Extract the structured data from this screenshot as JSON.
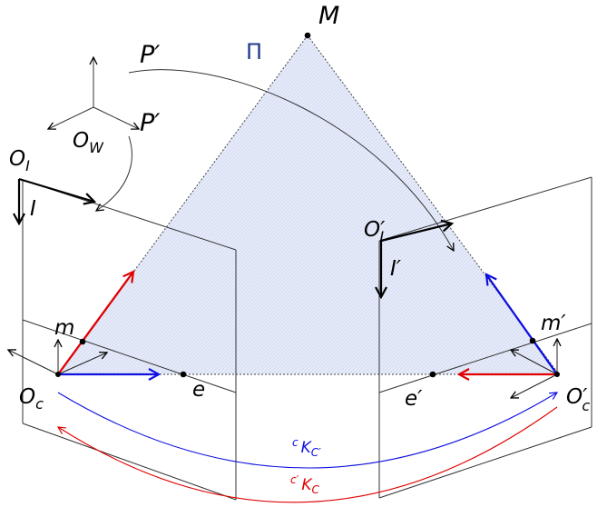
{
  "labels": {
    "M": "M",
    "Pi": "Π",
    "P_prime": "P′",
    "O": "O",
    "O_prime": "O′",
    "W": "W",
    "I": "I",
    "I_prime": "I′",
    "m": "m",
    "m_prime": "m′",
    "e": "e",
    "e_prime": "e′",
    "c": "c",
    "c_prime": "c′",
    "K": "K",
    "C": "C",
    "C_prime": "C′"
  },
  "colors": {
    "red": "#e00000",
    "blue": "#1010e0",
    "pi_label": "#1f3a8a",
    "plane_fill": "#e6ebf9"
  }
}
